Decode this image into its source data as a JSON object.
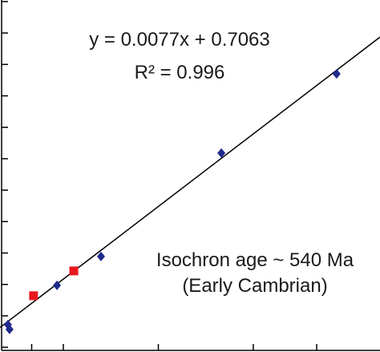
{
  "chart_data": {
    "type": "scatter",
    "annotations": [
      "y = 0.0077x + 0.7063",
      "R² = 0.996",
      "Isochron age ~ 540 Ma",
      "(Early Cambrian)"
    ],
    "series": [
      {
        "color": "#1f2a8c",
        "marker": "diamond",
        "x": [
          0.25,
          0.3,
          1.8,
          3.19,
          6.99,
          10.63
        ],
        "values": [
          0.7072,
          0.7057,
          0.7197,
          0.7289,
          0.7618,
          0.787
        ]
      },
      {
        "color": "#e8191e",
        "marker": "square",
        "x": [
          1.06,
          2.33
        ],
        "values": [
          0.7164,
          0.7243
        ]
      }
    ],
    "trendline": {
      "slope": 0.0077,
      "intercept": 0.7063,
      "color": "#000000"
    },
    "xlim": [
      0,
      12
    ],
    "ylim": [
      0.6985,
      0.8105
    ],
    "xticks": [
      1,
      2,
      5,
      8,
      10
    ],
    "yticks": [
      0.7,
      0.71,
      0.72,
      0.73,
      0.74,
      0.75,
      0.76,
      0.77,
      0.78,
      0.79,
      0.8,
      0.81
    ],
    "grid": false
  }
}
